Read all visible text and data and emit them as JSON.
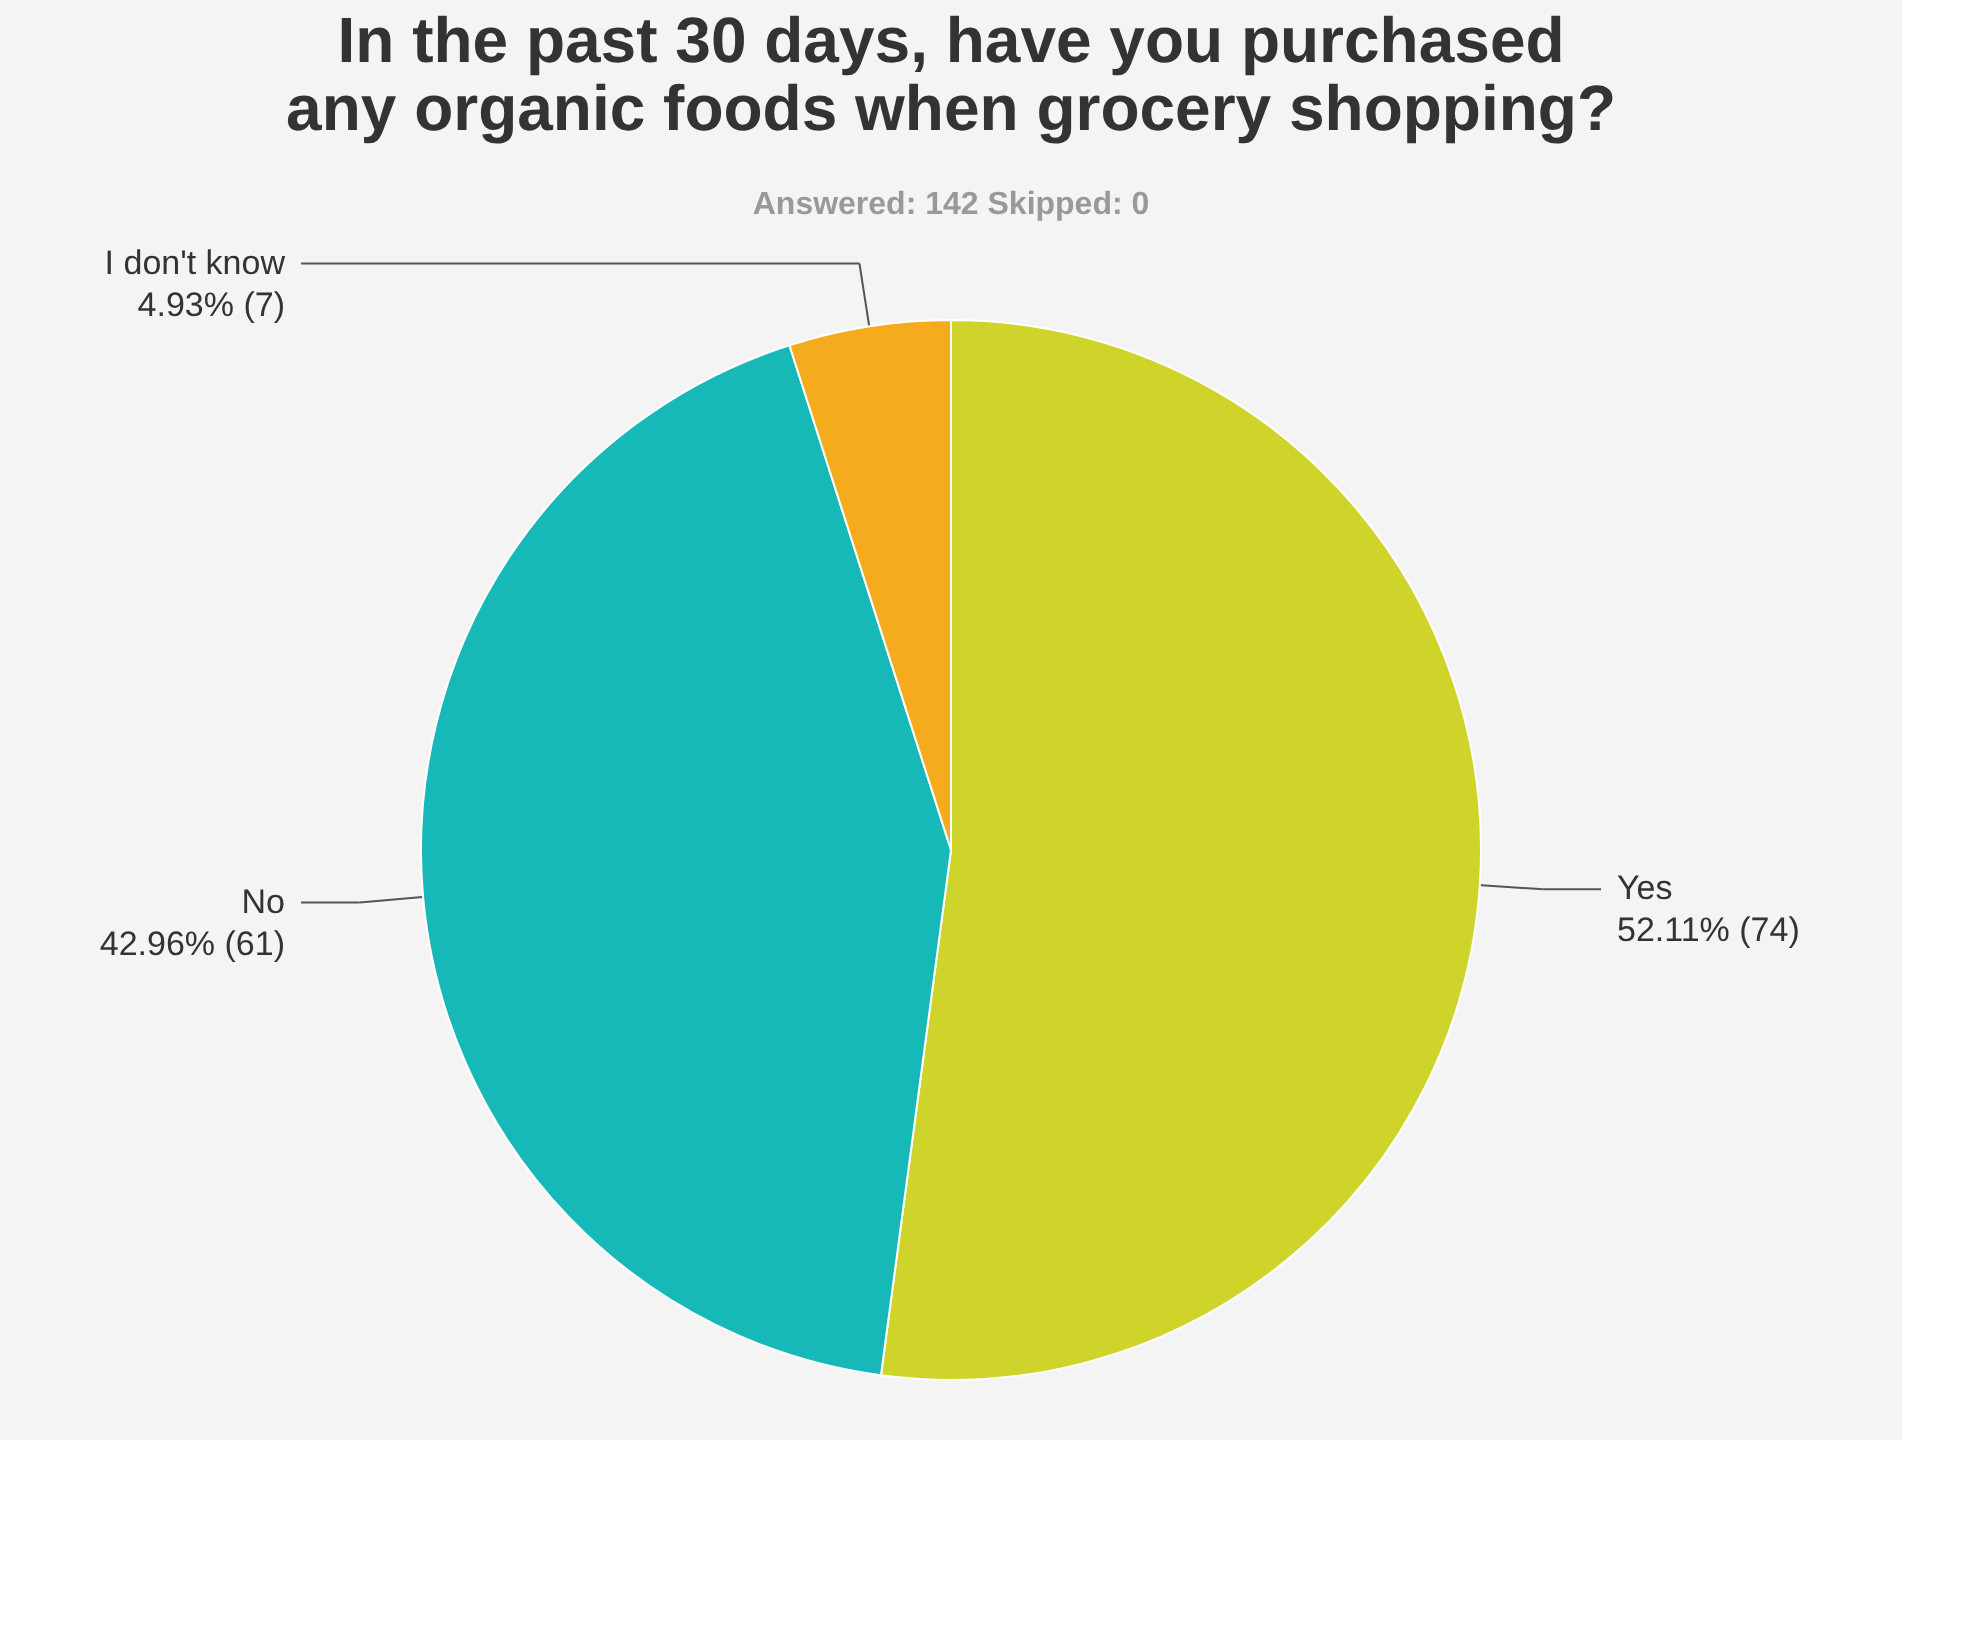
{
  "chart_data": {
    "type": "pie",
    "title": [
      "In the past 30 days, have you purchased",
      "any organic foods when grocery shopping?"
    ],
    "subtitle": "Answered: 142    Skipped: 0",
    "categories": [
      "Yes",
      "No",
      "I don't know"
    ],
    "values": [
      52.11,
      42.96,
      4.93
    ],
    "value_labels": [
      "52.11% (74)",
      "42.96% (61)",
      "4.93% (7)"
    ],
    "colors": [
      "#cfd42a",
      "#16b8b8",
      "#f5ab1e"
    ]
  }
}
